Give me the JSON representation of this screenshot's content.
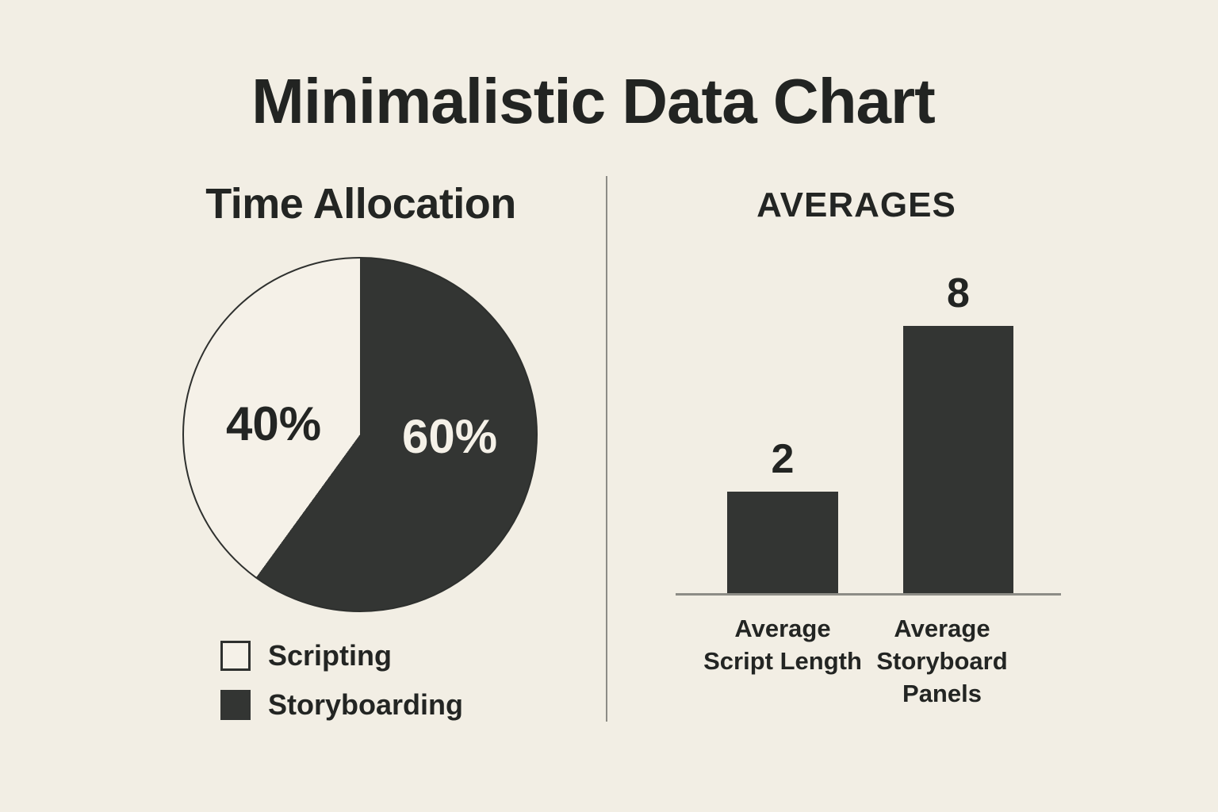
{
  "page": {
    "title": "Minimalistic Data Chart",
    "colors": {
      "background": "#f2eee4",
      "ink_text": "#232523",
      "fill_dark": "#333533",
      "paper_light": "#f5f1e8",
      "line_gray": "#8d8c86"
    }
  },
  "pie_section": {
    "title": "Time Allocation",
    "slice_labels": {
      "scripting": "40%",
      "storyboarding": "60%"
    },
    "legend": [
      {
        "label": "Scripting",
        "swatch": "outline"
      },
      {
        "label": "Storyboarding",
        "swatch": "filled"
      }
    ]
  },
  "bar_section": {
    "title": "AVERAGES",
    "value_labels": [
      "2",
      "8"
    ],
    "tick_labels": [
      "Average\nScript Length",
      "Average\nStoryboard\nPanels"
    ]
  },
  "chart_data": [
    {
      "type": "pie",
      "title": "Time Allocation",
      "labels": [
        "Scripting",
        "Storyboarding"
      ],
      "values": [
        40,
        60
      ],
      "unit": "%",
      "data_labels": [
        "40%",
        "60%"
      ],
      "colors": [
        "#f5f1e8",
        "#333533"
      ],
      "start_angle_deg": 0,
      "direction": "clockwise",
      "legend_position": "bottom-left"
    },
    {
      "type": "bar",
      "title": "AVERAGES",
      "categories": [
        "Average Script Length",
        "Average Storyboard Panels"
      ],
      "values": [
        2,
        8
      ],
      "data_labels": [
        "2",
        "8"
      ],
      "bar_color": "#333533",
      "grid": false,
      "y_axis_shown": false,
      "baseline_only": true
    }
  ]
}
